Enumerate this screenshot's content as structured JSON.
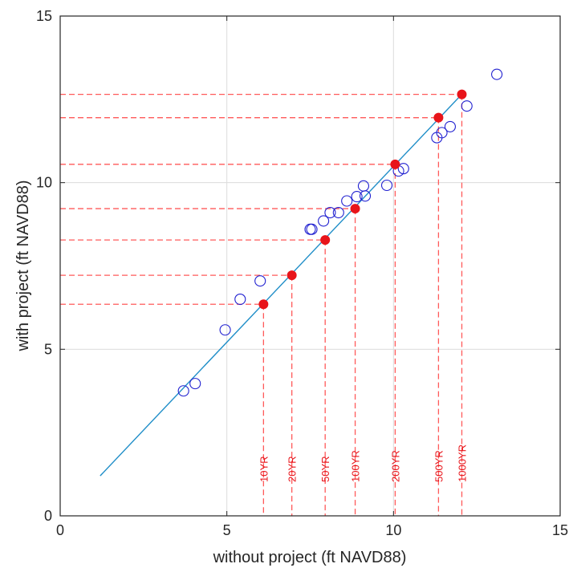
{
  "chart_data": {
    "type": "scatter",
    "xlabel": "without project (ft NAVD88)",
    "ylabel": "with project (ft NAVD88)",
    "xlim": [
      0,
      15
    ],
    "ylim": [
      0,
      15
    ],
    "xticks": [
      "0",
      "5",
      "10",
      "15"
    ],
    "yticks": [
      "0",
      "5",
      "10",
      "15"
    ],
    "grid": true,
    "scatter_points": [
      [
        3.7,
        3.75
      ],
      [
        4.05,
        3.97
      ],
      [
        4.95,
        5.58
      ],
      [
        5.4,
        6.5
      ],
      [
        6.0,
        7.05
      ],
      [
        7.5,
        8.6
      ],
      [
        7.55,
        8.6
      ],
      [
        7.9,
        8.85
      ],
      [
        8.1,
        9.1
      ],
      [
        8.35,
        9.1
      ],
      [
        8.6,
        9.45
      ],
      [
        8.9,
        9.58
      ],
      [
        9.1,
        9.9
      ],
      [
        9.15,
        9.6
      ],
      [
        9.8,
        9.92
      ],
      [
        10.15,
        10.35
      ],
      [
        10.3,
        10.42
      ],
      [
        11.3,
        11.35
      ],
      [
        11.45,
        11.5
      ],
      [
        11.7,
        11.68
      ],
      [
        12.2,
        12.3
      ],
      [
        13.1,
        13.25
      ]
    ],
    "fit_line": [
      [
        1.2,
        1.2
      ],
      [
        12.0,
        12.6
      ]
    ],
    "return_periods": [
      {
        "label": "10YR",
        "x": 6.1,
        "y": 6.35
      },
      {
        "label": "20YR",
        "x": 6.95,
        "y": 7.22
      },
      {
        "label": "50YR",
        "x": 7.95,
        "y": 8.28
      },
      {
        "label": "100YR",
        "x": 8.85,
        "y": 9.22
      },
      {
        "label": "200YR",
        "x": 10.05,
        "y": 10.55
      },
      {
        "label": "500YR",
        "x": 11.35,
        "y": 11.95
      },
      {
        "label": "1000YR",
        "x": 12.05,
        "y": 12.65
      }
    ],
    "colors": {
      "scatter": "#2020d0",
      "fit": "#1f8ec8",
      "return_period": "#e8141a",
      "dashed": "#ff5a5a",
      "grid": "#dcdcdc",
      "axis": "#262626"
    }
  }
}
